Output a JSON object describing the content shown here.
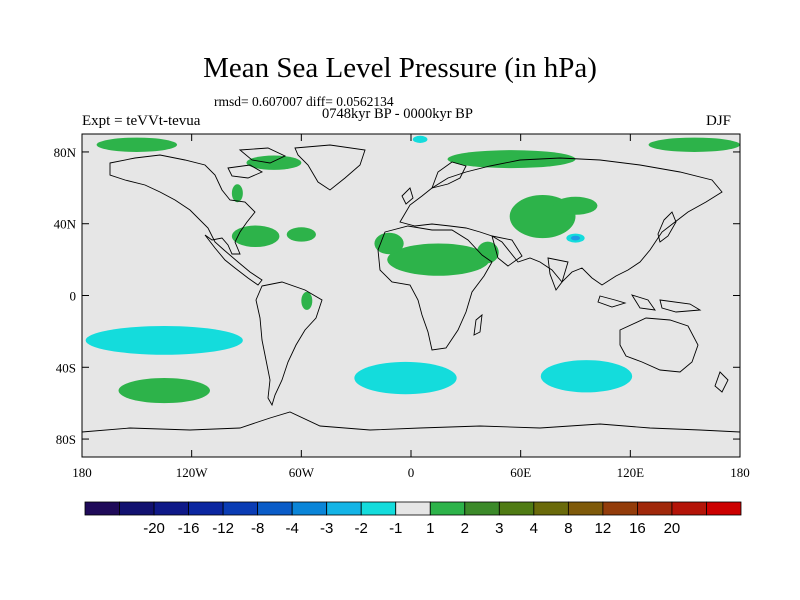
{
  "title": "Mean Sea Level Pressure (in hPa)",
  "stats_line": "rmsd= 0.607007 diff= 0.0562134",
  "period_line": "0748kyr BP - 0000kyr BP",
  "experiment_label": "Expt = teVVt-tevua",
  "season_label": "DJF",
  "colors": {
    "background": "#e6e6e6",
    "positive_anomaly": "#2db34a",
    "negative_anomaly": "#14dcdc",
    "strong_negative": "#1e9be6",
    "coastline": "#000000"
  },
  "map": {
    "projection": "cylindrical equidistant",
    "lon_range": [
      -180,
      180
    ],
    "lat_range": [
      -90,
      90
    ],
    "x_ticks": [
      {
        "lon": -180,
        "label": "180"
      },
      {
        "lon": -120,
        "label": "120W"
      },
      {
        "lon": -60,
        "label": "60W"
      },
      {
        "lon": 0,
        "label": "0"
      },
      {
        "lon": 60,
        "label": "60E"
      },
      {
        "lon": 120,
        "label": "120E"
      },
      {
        "lon": 180,
        "label": "180"
      }
    ],
    "y_ticks": [
      {
        "lat": 80,
        "label": "80N"
      },
      {
        "lat": 40,
        "label": "40N"
      },
      {
        "lat": 0,
        "label": "0"
      },
      {
        "lat": -40,
        "label": "40S"
      },
      {
        "lat": -80,
        "label": "80S"
      }
    ],
    "anomaly_regions": [
      {
        "class": "positive",
        "center": [
          -150,
          84
        ],
        "radii": [
          22,
          4
        ]
      },
      {
        "class": "positive",
        "center": [
          155,
          84
        ],
        "radii": [
          25,
          4
        ]
      },
      {
        "class": "positive",
        "center": [
          -75,
          74
        ],
        "radii": [
          15,
          4
        ]
      },
      {
        "class": "positive",
        "center": [
          -95,
          57
        ],
        "radii": [
          3,
          5
        ]
      },
      {
        "class": "positive",
        "center": [
          -85,
          33
        ],
        "radii": [
          13,
          6
        ]
      },
      {
        "class": "positive",
        "center": [
          -60,
          34
        ],
        "radii": [
          8,
          4
        ]
      },
      {
        "class": "positive",
        "center": [
          -57,
          -3
        ],
        "radii": [
          3,
          5
        ]
      },
      {
        "class": "positive",
        "center": [
          15,
          20
        ],
        "radii": [
          28,
          9
        ]
      },
      {
        "class": "positive",
        "center": [
          -12,
          29
        ],
        "radii": [
          8,
          6
        ]
      },
      {
        "class": "positive",
        "center": [
          42,
          24
        ],
        "radii": [
          6,
          6
        ]
      },
      {
        "class": "positive",
        "center": [
          55,
          76
        ],
        "radii": [
          35,
          5
        ]
      },
      {
        "class": "positive",
        "center": [
          72,
          44
        ],
        "radii": [
          18,
          12
        ]
      },
      {
        "class": "positive",
        "center": [
          90,
          50
        ],
        "radii": [
          12,
          5
        ]
      },
      {
        "class": "positive",
        "center": [
          -135,
          -53
        ],
        "radii": [
          25,
          7
        ]
      },
      {
        "class": "negative",
        "center": [
          -135,
          -25
        ],
        "radii": [
          43,
          8
        ]
      },
      {
        "class": "negative",
        "center": [
          -3,
          -46
        ],
        "radii": [
          28,
          9
        ]
      },
      {
        "class": "negative",
        "center": [
          96,
          -45
        ],
        "radii": [
          25,
          9
        ]
      },
      {
        "class": "negative",
        "center": [
          5,
          87
        ],
        "radii": [
          4,
          2
        ]
      },
      {
        "class": "negative",
        "center": [
          90,
          32
        ],
        "radii": [
          5,
          2.5
        ]
      },
      {
        "class": "strong_negative",
        "center": [
          90,
          32
        ],
        "radii": [
          2.5,
          1.3
        ]
      }
    ]
  },
  "colorbar": {
    "colors": [
      "#1f0a59",
      "#121170",
      "#0f1988",
      "#0b26a0",
      "#0a3cb4",
      "#0a5cc8",
      "#0a85d8",
      "#14b4e6",
      "#14dcdc",
      "#e6e6e6",
      "#2db34a",
      "#3c8a2a",
      "#4f7b14",
      "#6a6a0a",
      "#7f5a0a",
      "#933c0a",
      "#a0280a",
      "#b41408",
      "#cc0000"
    ],
    "labels": [
      "-20",
      "-16",
      "-12",
      "-8",
      "-4",
      "-3",
      "-2",
      "-1",
      "1",
      "2",
      "3",
      "4",
      "8",
      "12",
      "16",
      "20"
    ]
  }
}
